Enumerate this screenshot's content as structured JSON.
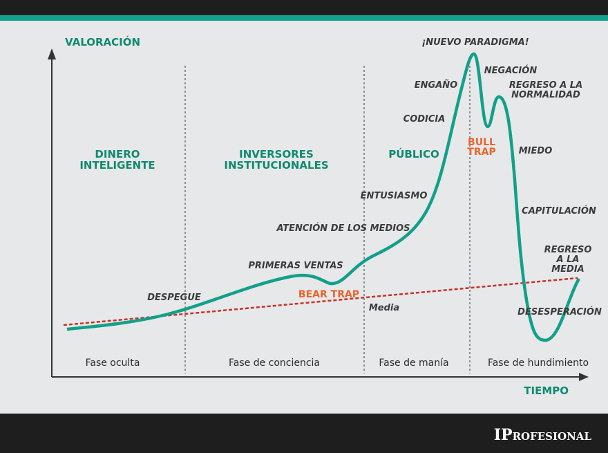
{
  "axes": {
    "y": "VALORACIÓN",
    "x": "TIEMPO"
  },
  "groups": [
    {
      "lines": [
        "DINERO",
        "INTELIGENTE"
      ]
    },
    {
      "lines": [
        "INVERSORES",
        "INSTITUCIONALES"
      ]
    },
    {
      "lines": [
        "PÚBLICO"
      ]
    }
  ],
  "phases": [
    "Fase oculta",
    "Fase de conciencia",
    "Fase de manía",
    "Fase de hundimiento"
  ],
  "stages": [
    {
      "lines": [
        "DESPEGUE"
      ]
    },
    {
      "lines": [
        "PRIMERAS VENTAS"
      ]
    },
    {
      "lines": [
        "ATENCIÓN DE LOS MEDIOS"
      ]
    },
    {
      "lines": [
        "ENTUSIASMO"
      ]
    },
    {
      "lines": [
        "CODICIA"
      ]
    },
    {
      "lines": [
        "ENGAÑO"
      ]
    },
    {
      "lines": [
        "¡NUEVO PARADIGMA!"
      ]
    },
    {
      "lines": [
        "NEGACIÓN"
      ]
    },
    {
      "lines": [
        "REGRESO A LA",
        "NORMALIDAD"
      ]
    },
    {
      "lines": [
        "MIEDO"
      ]
    },
    {
      "lines": [
        "CAPITULACIÓN"
      ]
    },
    {
      "lines": [
        "DESESPERACIÓN"
      ]
    },
    {
      "lines": [
        "REGRESO",
        "A LA",
        "MEDIA"
      ]
    }
  ],
  "traps": [
    {
      "lines": [
        "BEAR TRAP"
      ]
    },
    {
      "lines": [
        "BULL",
        "TRAP"
      ]
    }
  ],
  "mean": "Media",
  "brand": "IProfesional"
}
